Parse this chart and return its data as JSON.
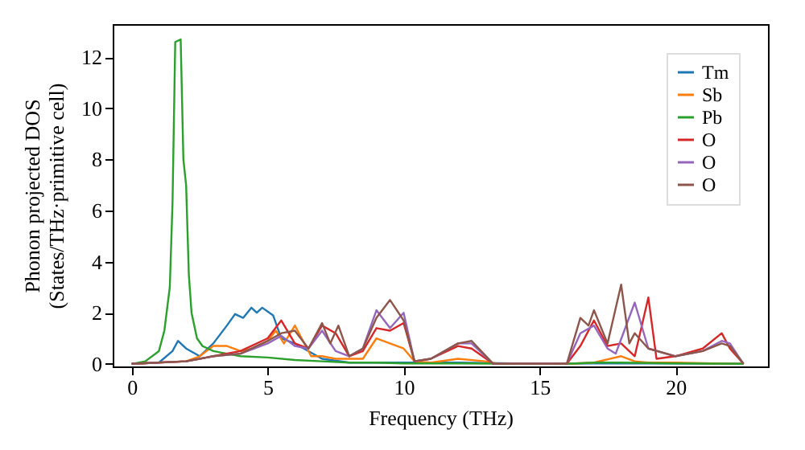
{
  "chart_data": {
    "type": "line",
    "xlabel": "Frequency (THz)",
    "ylabel": "Phonon projected DOS\n(States/THz·primitive cell)",
    "xlim": [
      -0.7,
      23.4
    ],
    "ylim": [
      -0.1,
      13.3
    ],
    "xticks": [
      0,
      5,
      10,
      15,
      20
    ],
    "yticks": [
      0,
      2,
      4,
      6,
      8,
      10,
      12
    ],
    "legend": "top right",
    "grid": false,
    "series": [
      {
        "name": "Tm",
        "color": "#1f77b4",
        "x": [
          0,
          1,
          1.5,
          1.7,
          2,
          2.5,
          3,
          3.5,
          3.8,
          4.1,
          4.4,
          4.6,
          4.8,
          5.2,
          5.5,
          6,
          6.5,
          7,
          8,
          10,
          12,
          15,
          17,
          20,
          22.5
        ],
        "values": [
          0,
          0.05,
          0.5,
          0.9,
          0.6,
          0.3,
          0.8,
          1.5,
          1.95,
          1.8,
          2.2,
          2,
          2.2,
          1.9,
          1,
          0.8,
          0.5,
          0.2,
          0.05,
          0.05,
          0.05,
          0,
          0.02,
          0.02,
          0
        ]
      },
      {
        "name": "Sb",
        "color": "#ff7f0e",
        "x": [
          0,
          2,
          2.5,
          3,
          3.5,
          4,
          4.5,
          5,
          5.3,
          5.6,
          6,
          6.3,
          6.6,
          7,
          7.5,
          8,
          8.5,
          9,
          9.5,
          10,
          10.4,
          11,
          12,
          13,
          13.5,
          16,
          17,
          18,
          18.5,
          19,
          20,
          22,
          22.5
        ],
        "values": [
          0,
          0.1,
          0.3,
          0.7,
          0.7,
          0.5,
          0.6,
          0.9,
          1.3,
          0.8,
          1.5,
          0.9,
          0.3,
          0.3,
          0.2,
          0.2,
          0.2,
          1,
          0.8,
          0.6,
          0.1,
          0.05,
          0.2,
          0.1,
          0,
          0,
          0.05,
          0.3,
          0.1,
          0.05,
          0.05,
          0,
          0
        ]
      },
      {
        "name": "Pb",
        "color": "#2ca02c",
        "x": [
          0,
          0.5,
          1,
          1.2,
          1.4,
          1.5,
          1.6,
          1.8,
          1.9,
          2,
          2.1,
          2.2,
          2.4,
          2.6,
          3,
          3.5,
          4,
          5,
          6,
          7,
          8,
          9,
          10,
          12,
          15,
          16,
          17,
          18,
          20,
          22.5
        ],
        "values": [
          0,
          0.1,
          0.5,
          1.3,
          3,
          6.3,
          12.6,
          12.7,
          8,
          7,
          3.5,
          2,
          1,
          0.7,
          0.5,
          0.4,
          0.3,
          0.25,
          0.15,
          0.1,
          0.05,
          0.05,
          0.02,
          0.02,
          0,
          0,
          0.05,
          0.05,
          0.02,
          0
        ]
      },
      {
        "name": "O",
        "color": "#d62728",
        "x": [
          0,
          2,
          3,
          4,
          5,
          5.5,
          6,
          6.5,
          7,
          7.5,
          8,
          8.5,
          9,
          9.5,
          10,
          10.4,
          11,
          12,
          12.5,
          13.3,
          16,
          16.5,
          17,
          17.5,
          18,
          18.5,
          19,
          19.3,
          20,
          21,
          21.7,
          22,
          22.5
        ],
        "values": [
          0,
          0.1,
          0.3,
          0.5,
          1,
          1.7,
          0.8,
          0.6,
          1.5,
          1.2,
          0.3,
          0.5,
          1.4,
          1.3,
          1.6,
          0.1,
          0.2,
          0.7,
          0.6,
          0,
          0,
          0.7,
          1.7,
          0.7,
          0.8,
          0.3,
          2.6,
          0.2,
          0.3,
          0.6,
          1.2,
          0.6,
          0
        ]
      },
      {
        "name": "O",
        "color": "#9467bd",
        "x": [
          0,
          2,
          3,
          4,
          5,
          5.5,
          6,
          6.5,
          7,
          7.5,
          8,
          8.5,
          9,
          9.5,
          10,
          10.4,
          11,
          12,
          12.5,
          13.3,
          16,
          16.5,
          17,
          17.5,
          17.8,
          18.5,
          19,
          20,
          21,
          21.7,
          22,
          22.5
        ],
        "values": [
          0,
          0.1,
          0.3,
          0.4,
          0.8,
          1.1,
          0.7,
          0.6,
          1.3,
          0.5,
          0.3,
          0.6,
          2.1,
          1.4,
          2,
          0.1,
          0.2,
          0.8,
          0.8,
          0,
          0,
          1.2,
          1.5,
          0.6,
          0.4,
          2.4,
          0.6,
          0.3,
          0.5,
          0.9,
          0.8,
          0
        ]
      },
      {
        "name": "O",
        "color": "#8c564b",
        "x": [
          0,
          2,
          3,
          4,
          5,
          5.5,
          6,
          6.5,
          7,
          7.3,
          7.6,
          8,
          8.5,
          9,
          9.5,
          10,
          10.4,
          11,
          12,
          12.5,
          13.3,
          16,
          16.5,
          16.8,
          17,
          17.5,
          18,
          18.3,
          18.5,
          19,
          20,
          21,
          21.7,
          22,
          22.5
        ],
        "values": [
          0,
          0.1,
          0.3,
          0.4,
          0.9,
          1.2,
          1.3,
          0.6,
          1.6,
          0.8,
          1.5,
          0.3,
          0.6,
          1.8,
          2.5,
          1.7,
          0.1,
          0.2,
          0.8,
          0.9,
          0,
          0,
          1.8,
          1.5,
          2.1,
          0.8,
          3.1,
          0.8,
          1.2,
          0.6,
          0.3,
          0.5,
          0.8,
          0.7,
          0
        ]
      }
    ]
  }
}
